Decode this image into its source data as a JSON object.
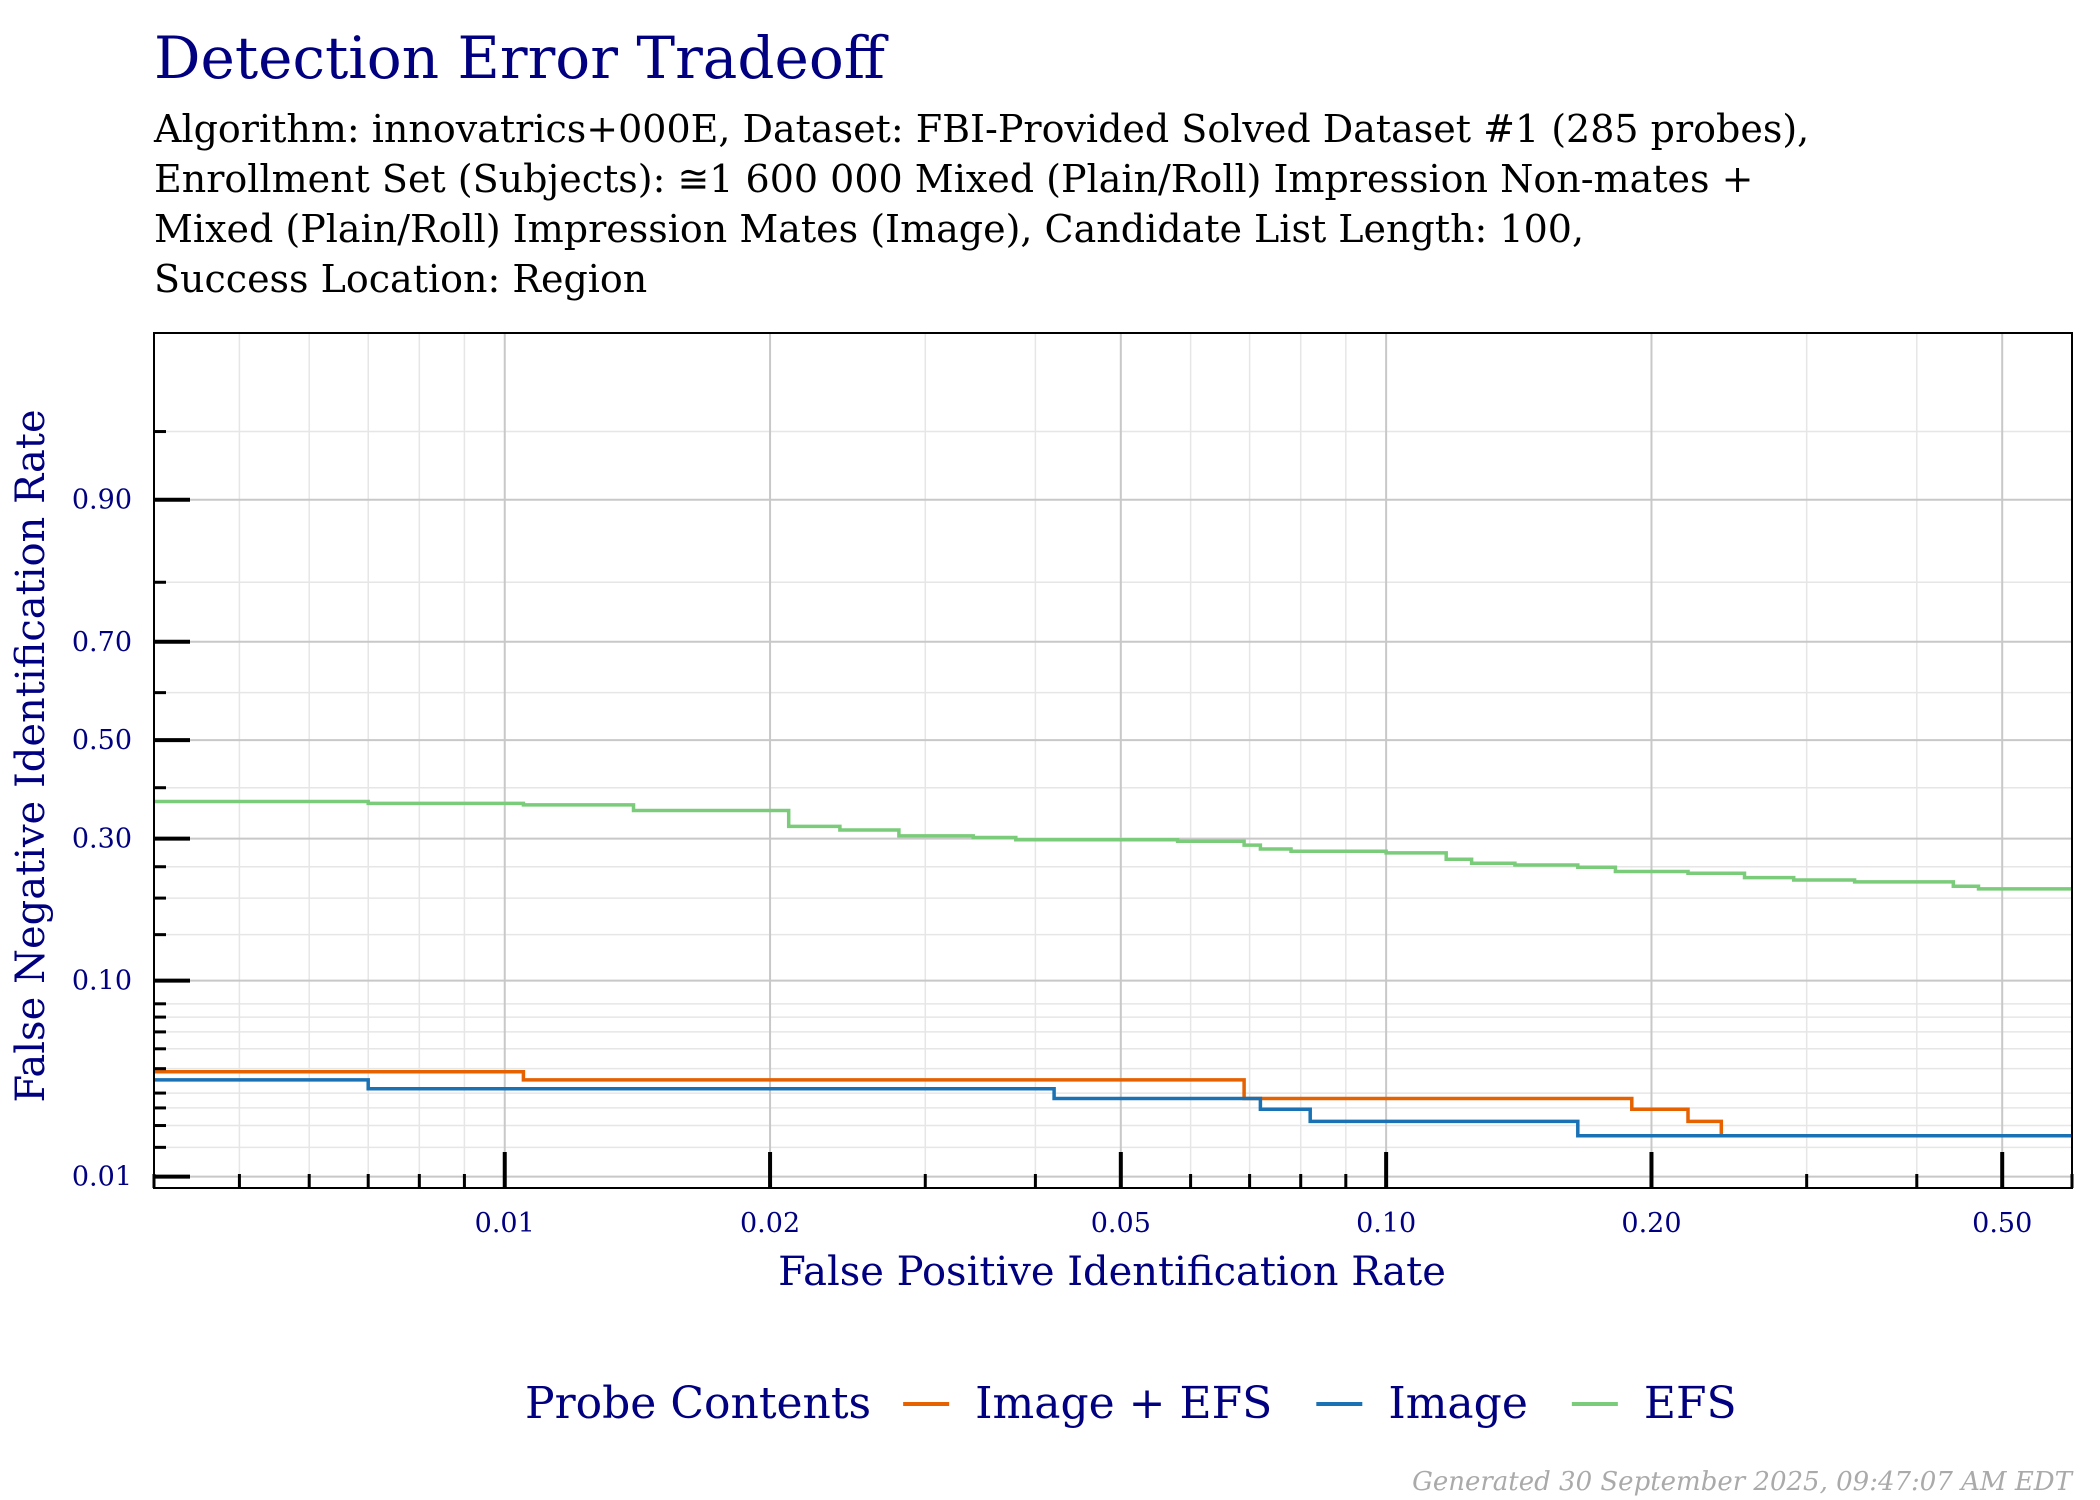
{
  "chart_data": {
    "type": "line",
    "title": "Detection Error Tradeoff",
    "subtitle_lines": [
      "Algorithm: innovatrics+000E, Dataset: FBI-Provided Solved Dataset #1 (285 probes),",
      "Enrollment Set (Subjects):  ≅1 600 000 Mixed (Plain/Roll) Impression Non-mates +",
      "Mixed (Plain/Roll) Impression Mates (Image), Candidate List Length: 100,",
      "Success Location: Region"
    ],
    "xlabel": "False Positive Identification Rate",
    "ylabel": "False Negative Identification Rate",
    "x_scale": "log",
    "y_scale": "probit",
    "xlim": [
      0.004,
      0.6
    ],
    "ylim": [
      0.0085,
      0.985
    ],
    "x_ticks": [
      {
        "value": 0.01,
        "label": "0.01"
      },
      {
        "value": 0.02,
        "label": "0.02"
      },
      {
        "value": 0.05,
        "label": "0.05"
      },
      {
        "value": 0.1,
        "label": "0.10"
      },
      {
        "value": 0.2,
        "label": "0.20"
      },
      {
        "value": 0.5,
        "label": "0.50"
      }
    ],
    "y_ticks": [
      {
        "value": 0.01,
        "label": "0.01"
      },
      {
        "value": 0.1,
        "label": "0.10"
      },
      {
        "value": 0.3,
        "label": "0.30"
      },
      {
        "value": 0.5,
        "label": "0.50"
      },
      {
        "value": 0.7,
        "label": "0.70"
      },
      {
        "value": 0.9,
        "label": "0.90"
      }
    ],
    "grid": true,
    "legend_title": "Probe Contents",
    "legend_position": "bottom",
    "series": [
      {
        "name": "Image + EFS",
        "color": "#e66100",
        "x": [
          0.004,
          0.0105,
          0.0105,
          0.069,
          0.069,
          0.19,
          0.19,
          0.22,
          0.22,
          0.24,
          0.24,
          0.6
        ],
        "y": [
          0.0386,
          0.0386,
          0.0351,
          0.0351,
          0.0281,
          0.0281,
          0.0246,
          0.0246,
          0.0211,
          0.0211,
          0.0175,
          0.0175
        ]
      },
      {
        "name": "Image",
        "color": "#1a72b4",
        "x": [
          0.004,
          0.007,
          0.007,
          0.042,
          0.042,
          0.072,
          0.072,
          0.082,
          0.082,
          0.165,
          0.165,
          0.6
        ],
        "y": [
          0.0351,
          0.0351,
          0.0316,
          0.0316,
          0.0281,
          0.0281,
          0.0246,
          0.0246,
          0.0211,
          0.0211,
          0.0175,
          0.0175
        ]
      },
      {
        "name": "EFS",
        "color": "#7acc7a",
        "x": [
          0.004,
          0.007,
          0.007,
          0.0105,
          0.0105,
          0.014,
          0.014,
          0.021,
          0.021,
          0.024,
          0.024,
          0.028,
          0.028,
          0.034,
          0.034,
          0.038,
          0.038,
          0.058,
          0.058,
          0.069,
          0.069,
          0.072,
          0.072,
          0.078,
          0.078,
          0.1,
          0.1,
          0.117,
          0.117,
          0.125,
          0.125,
          0.14,
          0.14,
          0.165,
          0.165,
          0.182,
          0.182,
          0.22,
          0.22,
          0.255,
          0.255,
          0.29,
          0.29,
          0.34,
          0.34,
          0.44,
          0.44,
          0.47,
          0.47,
          0.6
        ],
        "y": [
          0.372,
          0.372,
          0.368,
          0.368,
          0.365,
          0.365,
          0.354,
          0.354,
          0.323,
          0.323,
          0.316,
          0.316,
          0.305,
          0.305,
          0.302,
          0.302,
          0.298,
          0.298,
          0.295,
          0.295,
          0.288,
          0.288,
          0.281,
          0.281,
          0.277,
          0.277,
          0.274,
          0.274,
          0.263,
          0.263,
          0.256,
          0.256,
          0.253,
          0.253,
          0.249,
          0.249,
          0.242,
          0.242,
          0.239,
          0.239,
          0.232,
          0.232,
          0.228,
          0.228,
          0.225,
          0.225,
          0.218,
          0.218,
          0.214,
          0.214
        ]
      }
    ]
  },
  "footer": "Generated 30 September 2025, 09:47:07 AM EDT"
}
